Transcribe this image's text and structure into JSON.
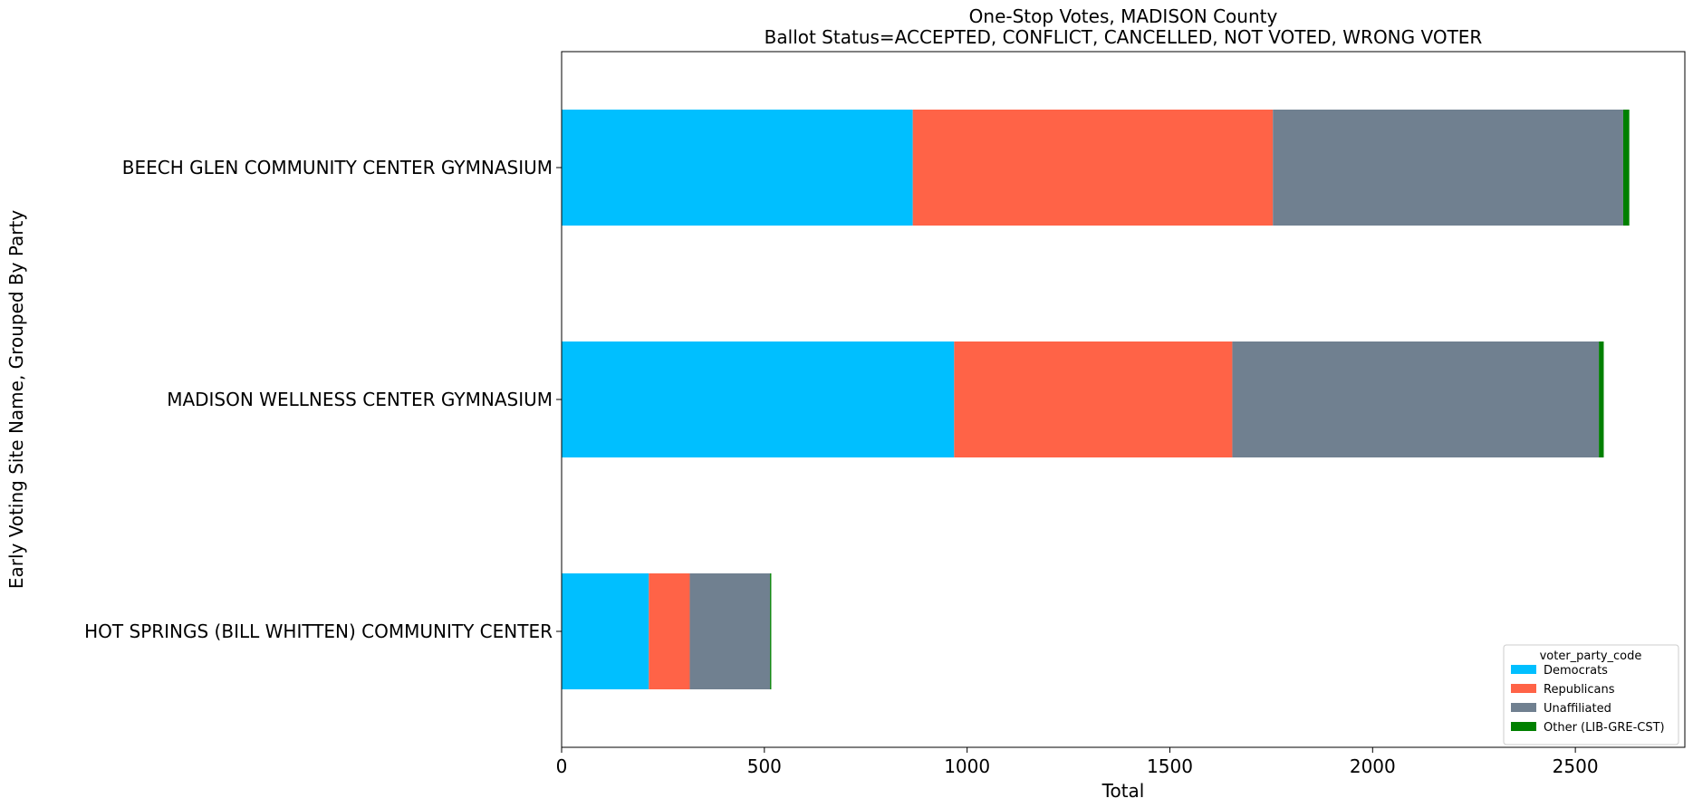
{
  "chart_data": {
    "type": "bar",
    "orientation": "horizontal",
    "stacked": true,
    "title": "One-Stop Votes, MADISON County",
    "subtitle": "Ballot Status=ACCEPTED, CONFLICT, CANCELLED, NOT VOTED, WRONG VOTER",
    "xlabel": "Total",
    "ylabel": "Early Voting Site Name, Grouped By Party",
    "xlim": [
      0,
      2770
    ],
    "xticks": [
      0,
      500,
      1000,
      1500,
      2000,
      2500
    ],
    "grid": false,
    "legend_position": "lower-right",
    "legend_title": "voter_party_code",
    "categories": [
      "BEECH GLEN COMMUNITY CENTER GYMNASIUM",
      "MADISON WELLNESS CENTER GYMNASIUM",
      "HOT SPRINGS (BILL WHITTEN) COMMUNITY CENTER"
    ],
    "series": [
      {
        "name": "Democrats",
        "color": "#00bfff",
        "values": [
          866,
          968,
          215
        ]
      },
      {
        "name": "Republicans",
        "color": "#ff6347",
        "values": [
          888,
          686,
          101
        ]
      },
      {
        "name": "Unaffiliated",
        "color": "#708090",
        "values": [
          864,
          904,
          198
        ]
      },
      {
        "name": "Other (LIB-GRE-CST)",
        "color": "#008000",
        "values": [
          15,
          12,
          3
        ]
      }
    ]
  }
}
